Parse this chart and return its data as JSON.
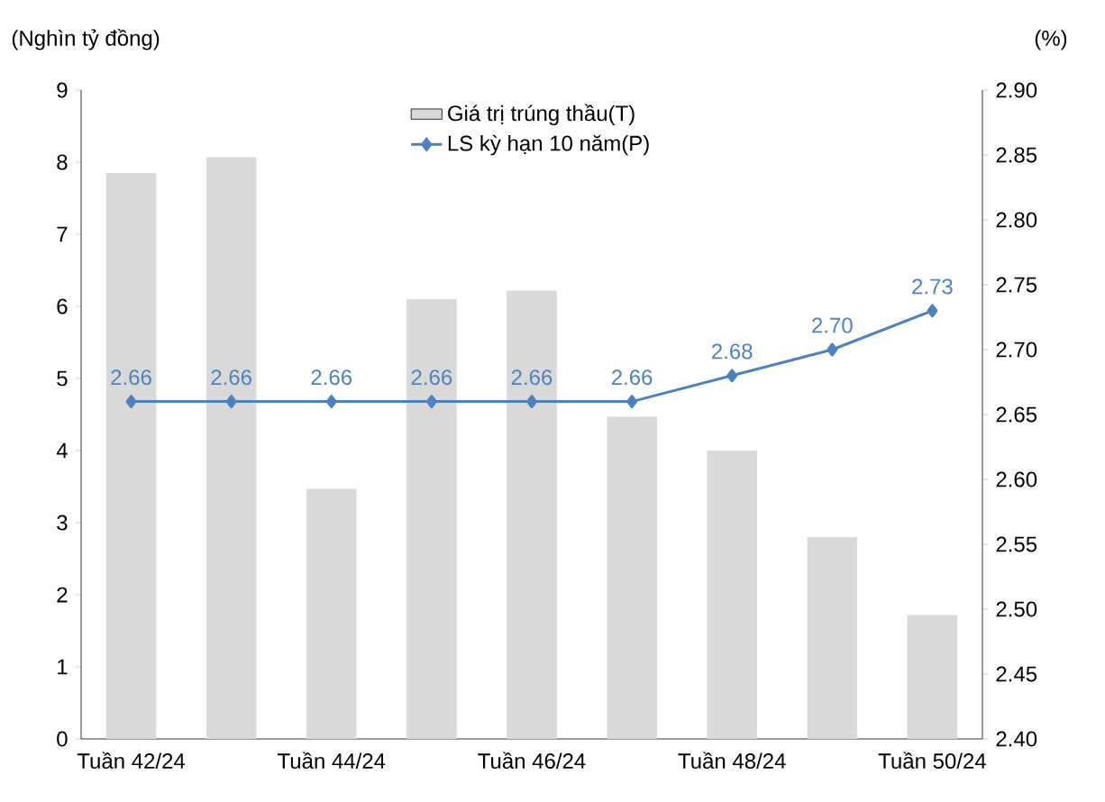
{
  "chart_data": {
    "type": "bar",
    "categories": [
      "Tuần 42/24",
      null,
      "Tuần 44/24",
      null,
      "Tuần 46/24",
      null,
      "Tuần 48/24",
      null,
      "Tuần 50/24"
    ],
    "series": [
      {
        "name": "Giá trị trúng thầu(T)",
        "color": "#d9d9d9",
        "values": [
          7.85,
          8.07,
          3.47,
          6.1,
          6.22,
          4.47,
          4.0,
          2.8,
          1.72
        ]
      },
      {
        "name": "LS kỳ hạn 10 năm(P)",
        "type": "line",
        "axis": "y2",
        "color": "#4f81bd",
        "marker": "diamond",
        "line_style": "solid",
        "values": [
          2.66,
          2.66,
          2.66,
          2.66,
          2.66,
          2.66,
          2.68,
          2.7,
          2.73
        ],
        "value_labels": [
          "2.66",
          "2.66",
          "2.66",
          "2.66",
          "2.66",
          "2.66",
          "2.68",
          "2.70",
          "2.73"
        ]
      }
    ],
    "ylabel": "(Nghìn tỷ đồng)",
    "y2label": "(%)",
    "ylim": [
      0,
      9
    ],
    "yticks": [
      0,
      1,
      2,
      3,
      4,
      5,
      6,
      7,
      8,
      9
    ],
    "y2lim": [
      2.4,
      2.9
    ],
    "y2ticks": [
      {
        "value": 2.4,
        "label": "2.40"
      },
      {
        "value": 2.45,
        "label": "2.45"
      },
      {
        "value": 2.5,
        "label": "2.50"
      },
      {
        "value": 2.55,
        "label": "2.55"
      },
      {
        "value": 2.6,
        "label": "2.60"
      },
      {
        "value": 2.65,
        "label": "2.65"
      },
      {
        "value": 2.7,
        "label": "2.70"
      },
      {
        "value": 2.75,
        "label": "2.75"
      },
      {
        "value": 2.8,
        "label": "2.80"
      },
      {
        "value": 2.85,
        "label": "2.85"
      },
      {
        "value": 2.9,
        "label": "2.90"
      }
    ],
    "legend": "top",
    "grid": false
  }
}
